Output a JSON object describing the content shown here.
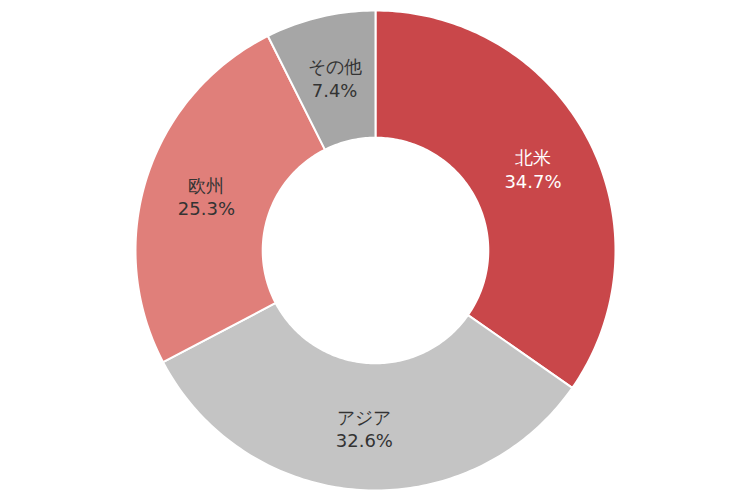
{
  "chart_data": {
    "type": "pie",
    "categories": [
      "北米",
      "アジア",
      "欧州",
      "その他"
    ],
    "values": [
      34.7,
      32.6,
      25.3,
      7.4
    ],
    "value_labels": [
      "34.7%",
      "32.6%",
      "25.3%",
      "7.4%"
    ],
    "colors": [
      "#c9474a",
      "#c4c4c4",
      "#e07f7a",
      "#a6a6a6"
    ],
    "data_labels": true
  }
}
